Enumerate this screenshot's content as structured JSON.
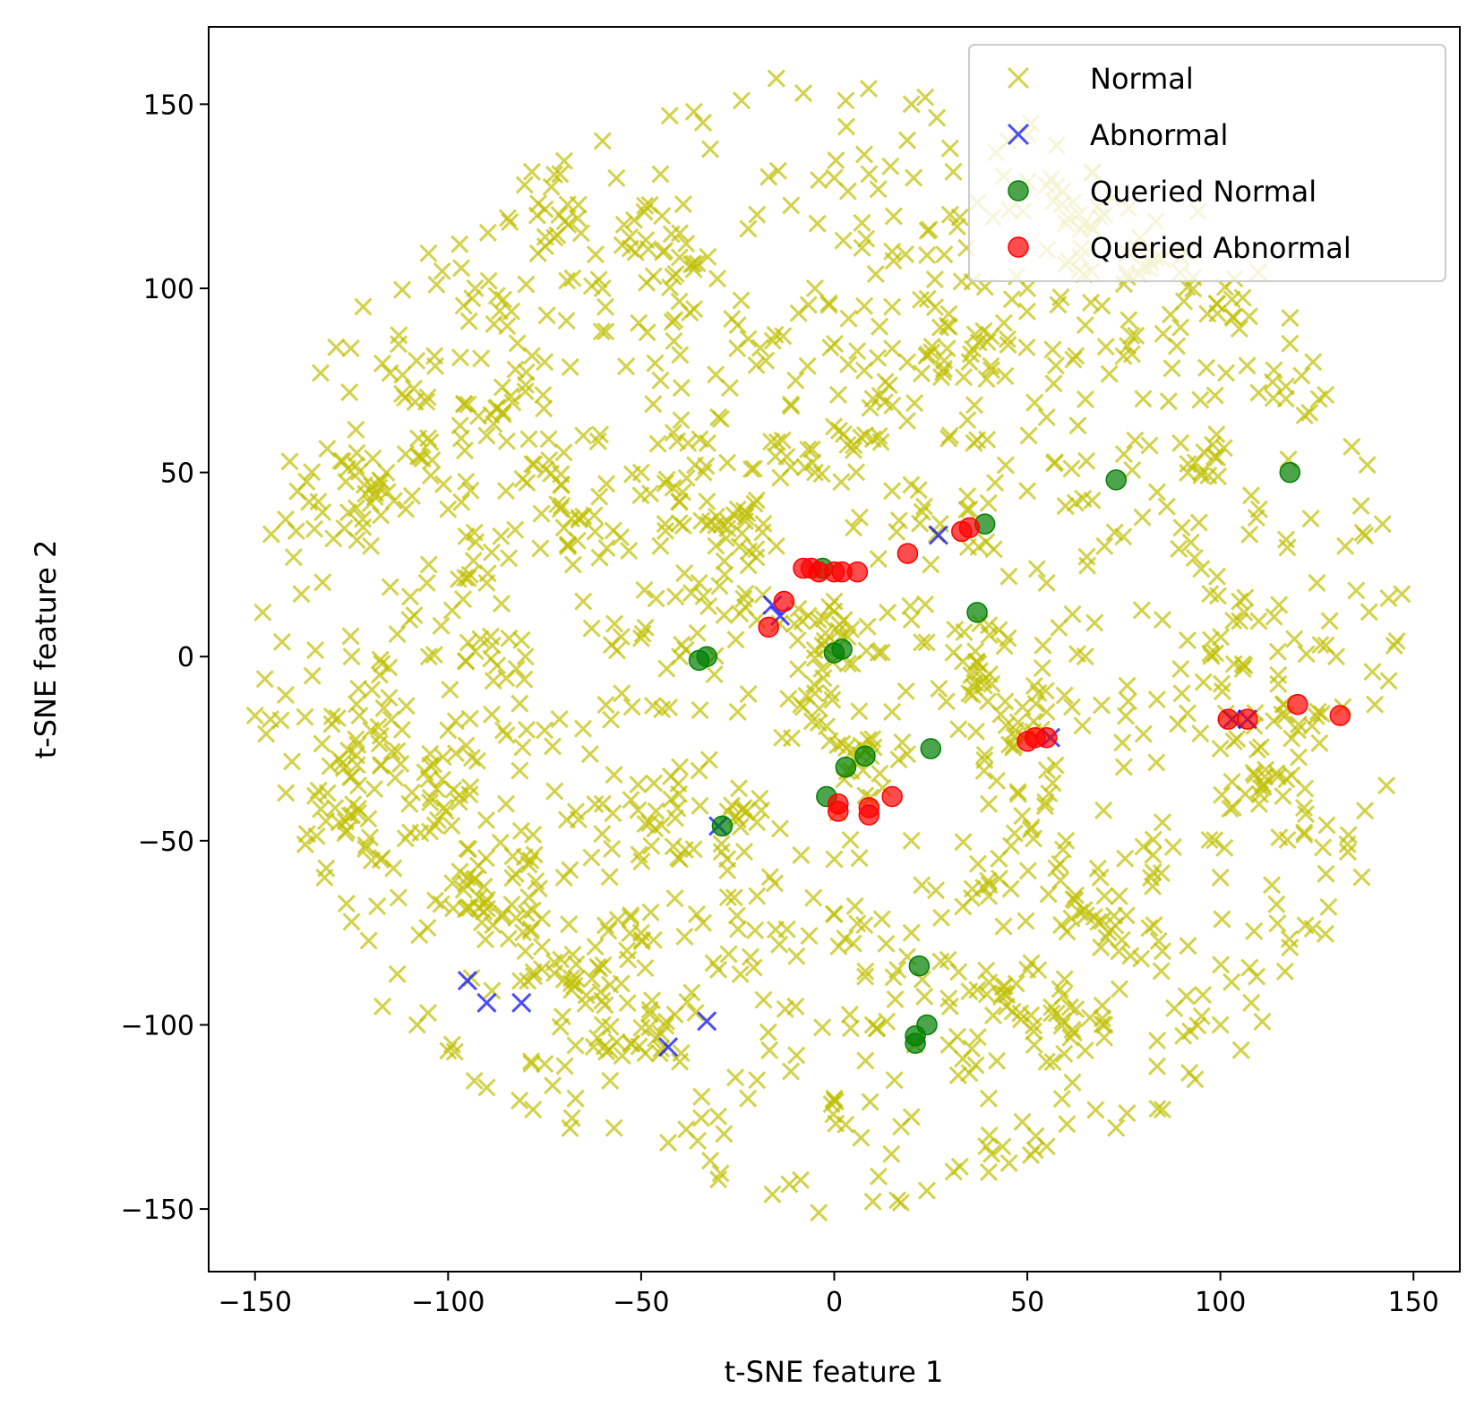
{
  "chart_data": {
    "type": "scatter",
    "title": "",
    "xlabel": "t-SNE feature 1",
    "ylabel": "t-SNE feature 2",
    "xlim": [
      -162,
      162
    ],
    "ylim": [
      -167,
      171
    ],
    "xticks": [
      -150,
      -100,
      -50,
      0,
      50,
      100,
      150
    ],
    "yticks": [
      -150,
      -100,
      -50,
      0,
      50,
      100,
      150
    ],
    "xtick_labels": [
      "−150",
      "−100",
      "−50",
      "0",
      "50",
      "100",
      "150"
    ],
    "ytick_labels": [
      "−150",
      "−100",
      "−50",
      "0",
      "50",
      "100",
      "150"
    ],
    "grid": false,
    "legend_position": "upper right",
    "normal_cloud": {
      "approx_count": 1500,
      "shape": "disk",
      "center": [
        0,
        0
      ],
      "x_range": [
        -150,
        150
      ],
      "y_range": [
        -152,
        157
      ]
    },
    "series": [
      {
        "name": "Normal",
        "marker": "x",
        "color": "#bfbf00",
        "opacity": 0.7,
        "points": [
          [
            -148,
            12
          ],
          [
            -143,
            4
          ],
          [
            -140,
            27
          ],
          [
            -138,
            17
          ],
          [
            -141,
            53
          ],
          [
            -136,
            42
          ],
          [
            -133,
            77
          ],
          [
            -129,
            84
          ],
          [
            -122,
            95
          ],
          [
            -115,
            77
          ],
          [
            -111,
            55
          ],
          [
            -103,
            101
          ],
          [
            -97,
            112
          ],
          [
            -93,
            100
          ],
          [
            -84,
            118
          ],
          [
            -80,
            72
          ],
          [
            -71,
            131
          ],
          [
            -60,
            140
          ],
          [
            -45,
            131
          ],
          [
            -34,
            145
          ],
          [
            -24,
            151
          ],
          [
            -15,
            157
          ],
          [
            -8,
            153
          ],
          [
            3,
            151
          ],
          [
            20,
            150
          ],
          [
            30,
            138
          ],
          [
            45,
            140
          ],
          [
            55,
            128
          ],
          [
            70,
            120
          ],
          [
            85,
            108
          ],
          [
            93,
            103
          ],
          [
            103,
            97
          ],
          [
            118,
            85
          ],
          [
            124,
            80
          ],
          [
            134,
            57
          ],
          [
            142,
            36
          ],
          [
            147,
            17
          ],
          [
            145,
            3
          ],
          [
            140,
            -13
          ],
          [
            143,
            -35
          ],
          [
            133,
            -53
          ],
          [
            128,
            -68
          ],
          [
            122,
            -73
          ],
          [
            118,
            -79
          ],
          [
            108,
            -94
          ],
          [
            100,
            -100
          ],
          [
            92,
            -113
          ],
          [
            85,
            -123
          ],
          [
            73,
            -128
          ],
          [
            55,
            -133
          ],
          [
            40,
            -140
          ],
          [
            24,
            -145
          ],
          [
            10,
            -148
          ],
          [
            -4,
            -151
          ],
          [
            -16,
            -146
          ],
          [
            -30,
            -142
          ],
          [
            -43,
            -132
          ],
          [
            -57,
            -128
          ],
          [
            -67,
            -120
          ],
          [
            -78,
            -123
          ],
          [
            -90,
            -117
          ],
          [
            -100,
            -107
          ],
          [
            -108,
            -100
          ],
          [
            -117,
            -95
          ],
          [
            -125,
            -72
          ],
          [
            -132,
            -60
          ],
          [
            -137,
            -51
          ],
          [
            -142,
            -37
          ],
          [
            -146,
            -17
          ],
          [
            -150,
            -16
          ],
          [
            -110,
            10
          ],
          [
            -120,
            30
          ],
          [
            -100,
            40
          ],
          [
            -90,
            60
          ],
          [
            -75,
            80
          ],
          [
            -60,
            100
          ],
          [
            -40,
            115
          ],
          [
            -20,
            120
          ],
          [
            0,
            130
          ],
          [
            15,
            110
          ],
          [
            30,
            120
          ],
          [
            50,
            100
          ],
          [
            65,
            90
          ],
          [
            80,
            70
          ],
          [
            95,
            50
          ],
          [
            110,
            40
          ],
          [
            125,
            20
          ],
          [
            130,
            0
          ],
          [
            120,
            -20
          ],
          [
            110,
            -40
          ],
          [
            100,
            -60
          ],
          [
            85,
            -80
          ],
          [
            70,
            -100
          ],
          [
            55,
            -110
          ],
          [
            40,
            -120
          ],
          [
            20,
            -125
          ],
          [
            0,
            -120
          ],
          [
            -20,
            -115
          ],
          [
            -40,
            -110
          ],
          [
            -60,
            -100
          ],
          [
            -80,
            -80
          ],
          [
            -95,
            -60
          ],
          [
            -110,
            -40
          ],
          [
            -120,
            -20
          ],
          [
            -125,
            0
          ],
          [
            -105,
            25
          ],
          [
            -85,
            45
          ],
          [
            -65,
            60
          ],
          [
            -45,
            75
          ],
          [
            -25,
            90
          ],
          [
            -5,
            100
          ],
          [
            15,
            95
          ],
          [
            35,
            80
          ],
          [
            55,
            65
          ],
          [
            75,
            55
          ],
          [
            90,
            35
          ],
          [
            105,
            15
          ],
          [
            115,
            -5
          ],
          [
            100,
            -25
          ],
          [
            85,
            -45
          ],
          [
            70,
            -65
          ],
          [
            50,
            -85
          ],
          [
            30,
            -95
          ],
          [
            10,
            -100
          ],
          [
            -10,
            -95
          ],
          [
            -30,
            -85
          ],
          [
            -50,
            -75
          ],
          [
            -70,
            -60
          ],
          [
            -85,
            -40
          ],
          [
            -100,
            -20
          ],
          [
            -105,
            0
          ],
          [
            -90,
            20
          ],
          [
            -70,
            35
          ],
          [
            -50,
            50
          ],
          [
            -30,
            65
          ],
          [
            -10,
            75
          ],
          [
            10,
            70
          ],
          [
            30,
            60
          ],
          [
            50,
            45
          ],
          [
            70,
            30
          ],
          [
            85,
            10
          ],
          [
            90,
            -10
          ],
          [
            75,
            -30
          ],
          [
            60,
            -50
          ],
          [
            40,
            -65
          ],
          [
            20,
            -75
          ],
          [
            0,
            -70
          ],
          [
            -20,
            -65
          ],
          [
            -40,
            -55
          ],
          [
            -60,
            -40
          ],
          [
            -75,
            -20
          ],
          [
            -80,
            0
          ],
          [
            -65,
            15
          ],
          [
            -45,
            30
          ],
          [
            -25,
            40
          ],
          [
            -5,
            50
          ],
          [
            15,
            45
          ],
          [
            35,
            40
          ],
          [
            55,
            20
          ],
          [
            65,
            0
          ],
          [
            55,
            -15
          ],
          [
            40,
            -40
          ],
          [
            20,
            -50
          ],
          [
            0,
            -55
          ],
          [
            -20,
            -45
          ],
          [
            -40,
            -30
          ],
          [
            -55,
            -10
          ],
          [
            -50,
            5
          ],
          [
            -35,
            20
          ],
          [
            -15,
            30
          ],
          [
            5,
            35
          ],
          [
            25,
            25
          ],
          [
            45,
            5
          ],
          [
            35,
            -10
          ],
          [
            15,
            -15
          ],
          [
            -5,
            -10
          ],
          [
            -25,
            -15
          ],
          [
            -40,
            0
          ],
          [
            -20,
            10
          ],
          [
            0,
            15
          ],
          [
            20,
            10
          ]
        ]
      },
      {
        "name": "Abnormal",
        "marker": "x",
        "color": "#0000ff",
        "opacity": 0.7,
        "points": [
          [
            -95,
            -88
          ],
          [
            -90,
            -94
          ],
          [
            -81,
            -94
          ],
          [
            -43,
            -106
          ],
          [
            -33,
            -99
          ],
          [
            -30,
            -46
          ],
          [
            -16,
            14
          ],
          [
            -14,
            11
          ],
          [
            27,
            33
          ],
          [
            56,
            -22
          ],
          [
            103,
            -17
          ],
          [
            107,
            -17
          ]
        ]
      },
      {
        "name": "Queried Normal",
        "marker": "o",
        "color": "#007f00",
        "opacity": 0.7,
        "points": [
          [
            -35,
            -1
          ],
          [
            -33,
            0
          ],
          [
            -29,
            -46
          ],
          [
            -3,
            24
          ],
          [
            0,
            1
          ],
          [
            2,
            2
          ],
          [
            3,
            -30
          ],
          [
            8,
            -27
          ],
          [
            -2,
            -38
          ],
          [
            37,
            12
          ],
          [
            39,
            36
          ],
          [
            25,
            -25
          ],
          [
            73,
            48
          ],
          [
            118,
            50
          ],
          [
            22,
            -84
          ],
          [
            24,
            -100
          ],
          [
            21,
            -103
          ],
          [
            21,
            -105
          ]
        ]
      },
      {
        "name": "Queried Abnormal",
        "marker": "o",
        "color": "#ff0000",
        "opacity": 0.7,
        "points": [
          [
            -17,
            8
          ],
          [
            -13,
            15
          ],
          [
            -8,
            24
          ],
          [
            -6,
            24
          ],
          [
            -4,
            23
          ],
          [
            0,
            23
          ],
          [
            2,
            23
          ],
          [
            6,
            23
          ],
          [
            19,
            28
          ],
          [
            33,
            34
          ],
          [
            35,
            35
          ],
          [
            1,
            -40
          ],
          [
            1,
            -42
          ],
          [
            9,
            -41
          ],
          [
            9,
            -43
          ],
          [
            15,
            -38
          ],
          [
            50,
            -23
          ],
          [
            52,
            -22
          ],
          [
            55,
            -22
          ],
          [
            102,
            -17
          ],
          [
            107,
            -17
          ],
          [
            120,
            -13
          ],
          [
            131,
            -16
          ]
        ]
      }
    ]
  }
}
